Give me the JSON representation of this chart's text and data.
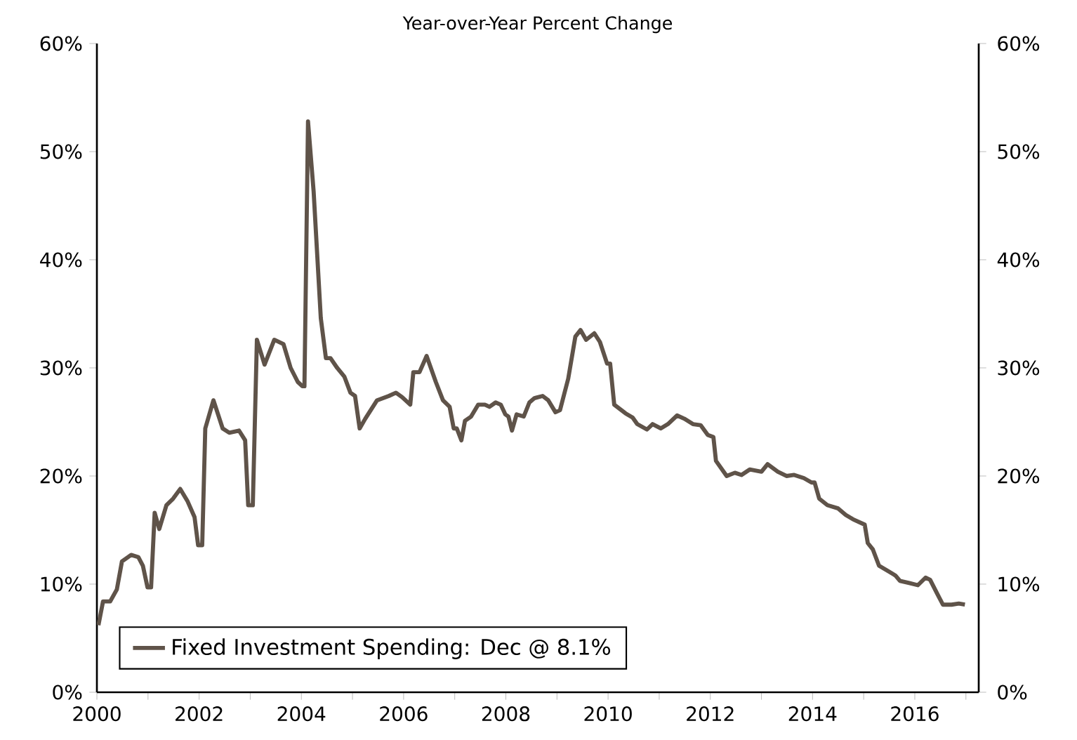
{
  "chart_data": {
    "type": "line",
    "subtitle": "Year-over-Year Percent Change",
    "xlim": [
      2000,
      2017.25
    ],
    "xticks": [
      {
        "value": 2000,
        "label": "2000"
      },
      {
        "value": 2001,
        "label": null
      },
      {
        "value": 2002,
        "label": "2002"
      },
      {
        "value": 2003,
        "label": null
      },
      {
        "value": 2004,
        "label": "2004"
      },
      {
        "value": 2005,
        "label": null
      },
      {
        "value": 2006,
        "label": "2006"
      },
      {
        "value": 2007,
        "label": null
      },
      {
        "value": 2008,
        "label": "2008"
      },
      {
        "value": 2009,
        "label": null
      },
      {
        "value": 2010,
        "label": "2010"
      },
      {
        "value": 2011,
        "label": null
      },
      {
        "value": 2012,
        "label": "2012"
      },
      {
        "value": 2013,
        "label": null
      },
      {
        "value": 2014,
        "label": "2014"
      },
      {
        "value": 2015,
        "label": null
      },
      {
        "value": 2016,
        "label": "2016"
      },
      {
        "value": 2017,
        "label": null
      }
    ],
    "ylim": [
      0,
      60
    ],
    "yticks": [
      {
        "value": 0,
        "label": "0%"
      },
      {
        "value": 10,
        "label": "10%"
      },
      {
        "value": 20,
        "label": "20%"
      },
      {
        "value": 30,
        "label": "30%"
      },
      {
        "value": 40,
        "label": "40%"
      },
      {
        "value": 50,
        "label": "50%"
      },
      {
        "value": 60,
        "label": "60%"
      }
    ],
    "y2lim": [
      0,
      60
    ],
    "y2ticks": [
      {
        "value": 0,
        "label": "0%"
      },
      {
        "value": 10,
        "label": "10%"
      },
      {
        "value": 20,
        "label": "20%"
      },
      {
        "value": 30,
        "label": "30%"
      },
      {
        "value": 40,
        "label": "40%"
      },
      {
        "value": 50,
        "label": "50%"
      },
      {
        "value": 60,
        "label": "60%"
      }
    ],
    "grid": false,
    "legend": "bottom left",
    "marker": "none",
    "line_style": "solid",
    "series": [
      {
        "name": "Fixed Investment Spending: Dec @ 8.1%",
        "color": "#5f5349",
        "x": [
          2000.03,
          2000.12,
          2000.26,
          2000.39,
          2000.49,
          2000.67,
          2000.81,
          2000.9,
          2000.99,
          2001.06,
          2001.13,
          2001.22,
          2001.36,
          2001.49,
          2001.63,
          2001.77,
          2001.91,
          2001.98,
          2002.06,
          2002.12,
          2002.28,
          2002.46,
          2002.59,
          2002.78,
          2002.9,
          2002.96,
          2003.05,
          2003.13,
          2003.28,
          2003.47,
          2003.65,
          2003.79,
          2003.93,
          2004.02,
          2004.06,
          2004.13,
          2004.24,
          2004.38,
          2004.48,
          2004.57,
          2004.7,
          2004.84,
          2004.96,
          2005.05,
          2005.14,
          2005.25,
          2005.48,
          2005.71,
          2005.85,
          2005.97,
          2006.13,
          2006.19,
          2006.31,
          2006.45,
          2006.63,
          2006.77,
          2006.9,
          2006.98,
          2007.04,
          2007.13,
          2007.2,
          2007.32,
          2007.46,
          2007.59,
          2007.68,
          2007.8,
          2007.9,
          2007.99,
          2008.05,
          2008.12,
          2008.21,
          2008.35,
          2008.46,
          2008.56,
          2008.72,
          2008.83,
          2008.97,
          2009.06,
          2009.22,
          2009.36,
          2009.46,
          2009.57,
          2009.73,
          2009.84,
          2009.98,
          2010.04,
          2010.12,
          2010.34,
          2010.48,
          2010.57,
          2010.76,
          2010.87,
          2011.03,
          2011.17,
          2011.35,
          2011.49,
          2011.66,
          2011.81,
          2011.95,
          2012.06,
          2012.11,
          2012.32,
          2012.48,
          2012.61,
          2012.77,
          2013.0,
          2013.12,
          2013.32,
          2013.49,
          2013.64,
          2013.83,
          2013.98,
          2014.04,
          2014.13,
          2014.29,
          2014.5,
          2014.65,
          2014.79,
          2015.02,
          2015.08,
          2015.18,
          2015.3,
          2015.48,
          2015.62,
          2015.71,
          2015.89,
          2016.06,
          2016.21,
          2016.3,
          2016.44,
          2016.55,
          2016.72,
          2016.86,
          2016.98
        ],
        "values": [
          6.2,
          8.4,
          8.4,
          9.5,
          12.1,
          12.7,
          12.5,
          11.7,
          9.7,
          9.7,
          16.6,
          15.1,
          17.3,
          17.9,
          18.8,
          17.7,
          16.2,
          13.6,
          13.6,
          24.4,
          27.0,
          24.4,
          24.0,
          24.2,
          23.3,
          17.3,
          17.3,
          32.6,
          30.3,
          32.6,
          32.2,
          30.0,
          28.7,
          28.3,
          28.3,
          52.8,
          46.3,
          34.6,
          30.9,
          30.9,
          30.0,
          29.2,
          27.7,
          27.4,
          24.4,
          25.3,
          27.0,
          27.4,
          27.7,
          27.3,
          26.6,
          29.6,
          29.6,
          31.1,
          28.7,
          27.0,
          26.4,
          24.4,
          24.4,
          23.3,
          25.1,
          25.5,
          26.6,
          26.6,
          26.4,
          26.8,
          26.6,
          25.7,
          25.5,
          24.2,
          25.7,
          25.5,
          26.8,
          27.2,
          27.4,
          27.0,
          25.9,
          26.1,
          29.0,
          32.9,
          33.5,
          32.6,
          33.2,
          32.4,
          30.4,
          30.4,
          26.6,
          25.8,
          25.4,
          24.8,
          24.3,
          24.8,
          24.4,
          24.8,
          25.6,
          25.3,
          24.8,
          24.7,
          23.8,
          23.6,
          21.4,
          20.0,
          20.3,
          20.1,
          20.6,
          20.4,
          21.1,
          20.4,
          20.0,
          20.1,
          19.8,
          19.4,
          19.4,
          17.9,
          17.3,
          17.0,
          16.4,
          16.0,
          15.5,
          13.8,
          13.2,
          11.7,
          11.2,
          10.8,
          10.3,
          10.1,
          9.9,
          10.6,
          10.4,
          9.1,
          8.1,
          8.1,
          8.2,
          8.1
        ]
      }
    ]
  }
}
